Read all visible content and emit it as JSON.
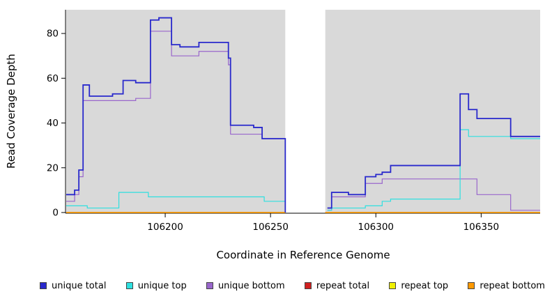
{
  "chart_data": {
    "type": "line",
    "title": "",
    "xlabel": "Coordinate in Reference Genome",
    "ylabel": "Read Coverage Depth",
    "xlim": [
      106153,
      106378
    ],
    "ylim": [
      0,
      90.6
    ],
    "xticks": [
      106200,
      106250,
      106300,
      106350
    ],
    "yticks": [
      0,
      20,
      40,
      60,
      80
    ],
    "grid": false,
    "legend_position": "bottom",
    "plot_bg": "#d9d9d9",
    "gap_region": {
      "x0": 106257,
      "x1": 106276,
      "color": "#ffffff"
    },
    "step": true,
    "draw_order": [
      3,
      4,
      5,
      2,
      1,
      0
    ],
    "series": [
      {
        "name": "unique total",
        "color": "#2929cc",
        "width": 1.8,
        "segments": [
          [
            [
              106153,
              8
            ],
            [
              106157,
              10
            ],
            [
              106159,
              19
            ],
            [
              106161,
              57
            ],
            [
              106164,
              52
            ],
            [
              106175,
              53
            ],
            [
              106180,
              59
            ],
            [
              106186,
              58
            ],
            [
              106193,
              86
            ],
            [
              106197,
              87
            ],
            [
              106203,
              75
            ],
            [
              106207,
              74
            ],
            [
              106216,
              76
            ],
            [
              106230,
              69
            ],
            [
              106231,
              39
            ],
            [
              106242,
              38
            ],
            [
              106246,
              33
            ],
            [
              106257,
              0
            ]
          ],
          [
            [
              106277,
              2
            ],
            [
              106279,
              9
            ],
            [
              106287,
              8
            ],
            [
              106295,
              16
            ],
            [
              106300,
              17
            ],
            [
              106303,
              18
            ],
            [
              106307,
              21
            ],
            [
              106340,
              53
            ],
            [
              106344,
              46
            ],
            [
              106348,
              42
            ],
            [
              106364,
              34
            ],
            [
              106378,
              34
            ]
          ]
        ]
      },
      {
        "name": "unique top",
        "color": "#2ee0e0",
        "width": 1.2,
        "segments": [
          [
            [
              106153,
              3
            ],
            [
              106163,
              2
            ],
            [
              106178,
              9
            ],
            [
              106192,
              7
            ],
            [
              106247,
              5
            ],
            [
              106257,
              0
            ]
          ],
          [
            [
              106277,
              1
            ],
            [
              106279,
              2
            ],
            [
              106295,
              3
            ],
            [
              106303,
              5
            ],
            [
              106307,
              6
            ],
            [
              106340,
              37
            ],
            [
              106344,
              34
            ],
            [
              106364,
              33
            ],
            [
              106378,
              33
            ]
          ]
        ]
      },
      {
        "name": "unique bottom",
        "color": "#9966cc",
        "width": 1.2,
        "segments": [
          [
            [
              106153,
              5
            ],
            [
              106157,
              8
            ],
            [
              106159,
              16
            ],
            [
              106161,
              50
            ],
            [
              106186,
              51
            ],
            [
              106193,
              81
            ],
            [
              106203,
              70
            ],
            [
              106216,
              72
            ],
            [
              106230,
              66
            ],
            [
              106231,
              35
            ],
            [
              106246,
              33
            ],
            [
              106257,
              0
            ]
          ],
          [
            [
              106277,
              1
            ],
            [
              106279,
              7
            ],
            [
              106295,
              13
            ],
            [
              106303,
              15
            ],
            [
              106348,
              8
            ],
            [
              106364,
              1
            ],
            [
              106378,
              1
            ]
          ]
        ]
      },
      {
        "name": "repeat total",
        "color": "#d02020",
        "width": 1.2,
        "segments": [
          [
            [
              106153,
              0
            ],
            [
              106257,
              0
            ]
          ],
          [
            [
              106276,
              0
            ],
            [
              106378,
              0
            ]
          ]
        ]
      },
      {
        "name": "repeat top",
        "color": "#f0f000",
        "width": 1.2,
        "segments": [
          [
            [
              106153,
              0
            ],
            [
              106257,
              0
            ]
          ],
          [
            [
              106276,
              0
            ],
            [
              106378,
              0
            ]
          ]
        ]
      },
      {
        "name": "repeat bottom",
        "color": "#ff9900",
        "width": 1.5,
        "segments": [
          [
            [
              106153,
              0
            ],
            [
              106257,
              0
            ]
          ],
          [
            [
              106276,
              0
            ],
            [
              106378,
              0
            ]
          ]
        ]
      }
    ]
  }
}
